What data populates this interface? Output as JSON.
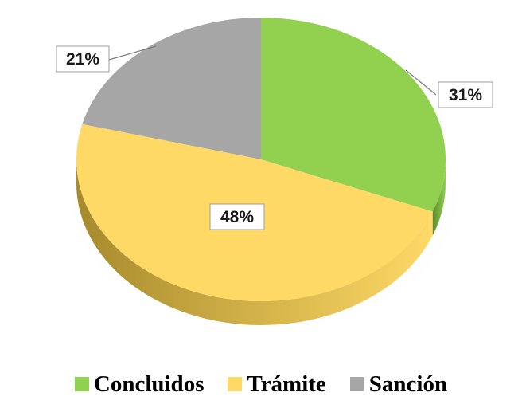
{
  "chart_data": {
    "type": "pie",
    "style": "3d",
    "categories": [
      "Concluidos",
      "Trámite",
      "Sanción"
    ],
    "values": [
      31,
      48,
      21
    ],
    "value_labels": [
      "31%",
      "48%",
      "21%"
    ],
    "colors": [
      "#92d050",
      "#ffd966",
      "#a6a6a6"
    ],
    "side_colors": [
      "#5e8a2e",
      "#a68a2c",
      "#6e6e6e"
    ],
    "start_angle_deg": 90,
    "direction": "clockwise",
    "legend_position": "bottom"
  }
}
